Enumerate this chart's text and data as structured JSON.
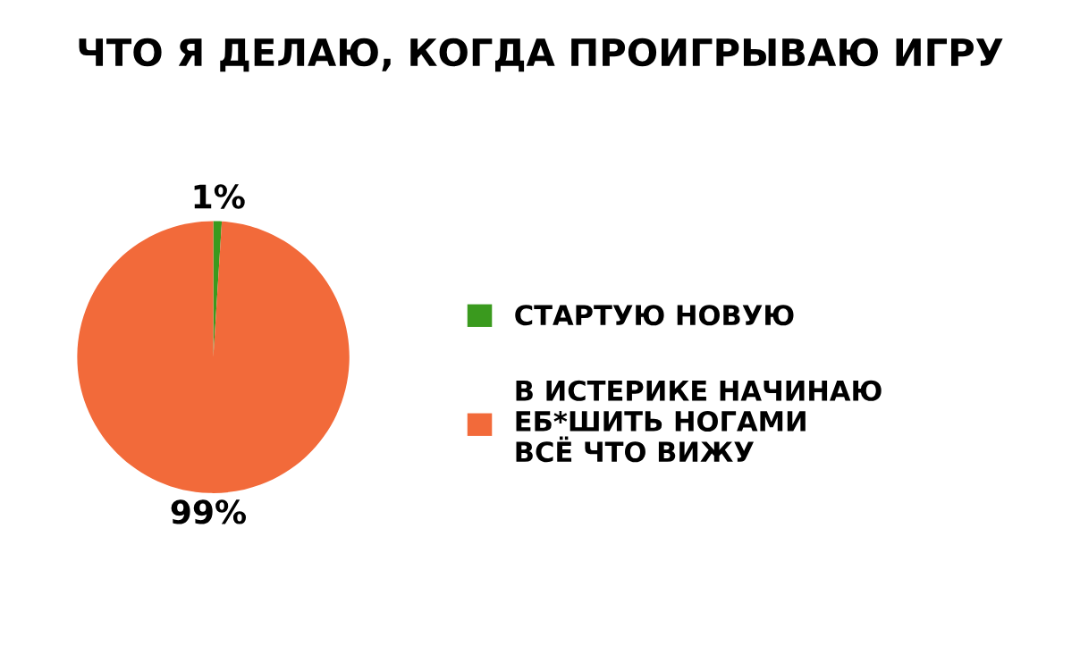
{
  "chart_data": {
    "type": "pie",
    "title": "ЧТО Я ДЕЛАЮ, КОГДА ПРОИГРЫВАЮ ИГРУ",
    "categories": [
      "СТАРТУЮ НОВУЮ",
      "В ИСТЕРИКЕ НАЧИНАЮ\nЕБ*ШИТЬ НОГАМИ\nВСЁ ЧТО ВИЖУ"
    ],
    "values": [
      1,
      99
    ],
    "colors": [
      "#3a9a1e",
      "#f26a3a"
    ],
    "value_labels": [
      "1%",
      "99%"
    ],
    "legend": "right"
  }
}
